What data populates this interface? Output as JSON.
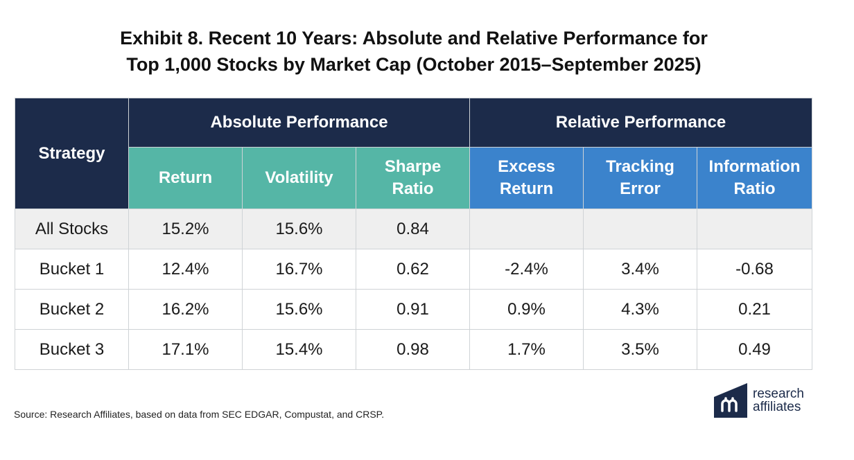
{
  "title": {
    "line1": "Exhibit 8. Recent 10 Years: Absolute and Relative Performance for",
    "line2": "Top 1,000 Stocks by Market Cap (October 2015–September 2025)"
  },
  "table": {
    "strategy_header": "Strategy",
    "group_absolute": "Absolute Performance",
    "group_relative": "Relative Performance",
    "columns": {
      "return": "Return",
      "volatility": "Volatility",
      "sharpe_l1": "Sharpe",
      "sharpe_l2": "Ratio",
      "excess_l1": "Excess",
      "excess_l2": "Return",
      "tracking_l1": "Tracking",
      "tracking_l2": "Error",
      "info_l1": "Information",
      "info_l2": "Ratio"
    },
    "rows": [
      {
        "strategy": "All Stocks",
        "return": "15.2%",
        "volatility": "15.6%",
        "sharpe": "0.84",
        "excess": "",
        "tracking": "",
        "info": ""
      },
      {
        "strategy": "Bucket 1",
        "return": "12.4%",
        "volatility": "16.7%",
        "sharpe": "0.62",
        "excess": "-2.4%",
        "tracking": "3.4%",
        "info": "-0.68"
      },
      {
        "strategy": "Bucket 2",
        "return": "16.2%",
        "volatility": "15.6%",
        "sharpe": "0.91",
        "excess": "0.9%",
        "tracking": "4.3%",
        "info": "0.21"
      },
      {
        "strategy": "Bucket 3",
        "return": "17.1%",
        "volatility": "15.4%",
        "sharpe": "0.98",
        "excess": "1.7%",
        "tracking": "3.5%",
        "info": "0.49"
      }
    ]
  },
  "source": "Source: Research Affiliates, based on data from SEC EDGAR, Compustat, and CRSP.",
  "logo": {
    "line1": "research",
    "line2": "affiliates",
    "icon": "research-affiliates-logo-icon"
  },
  "colors": {
    "navy": "#1c2b4a",
    "teal": "#55b6a6",
    "blue": "#3b83cc",
    "shade": "#efefef"
  }
}
